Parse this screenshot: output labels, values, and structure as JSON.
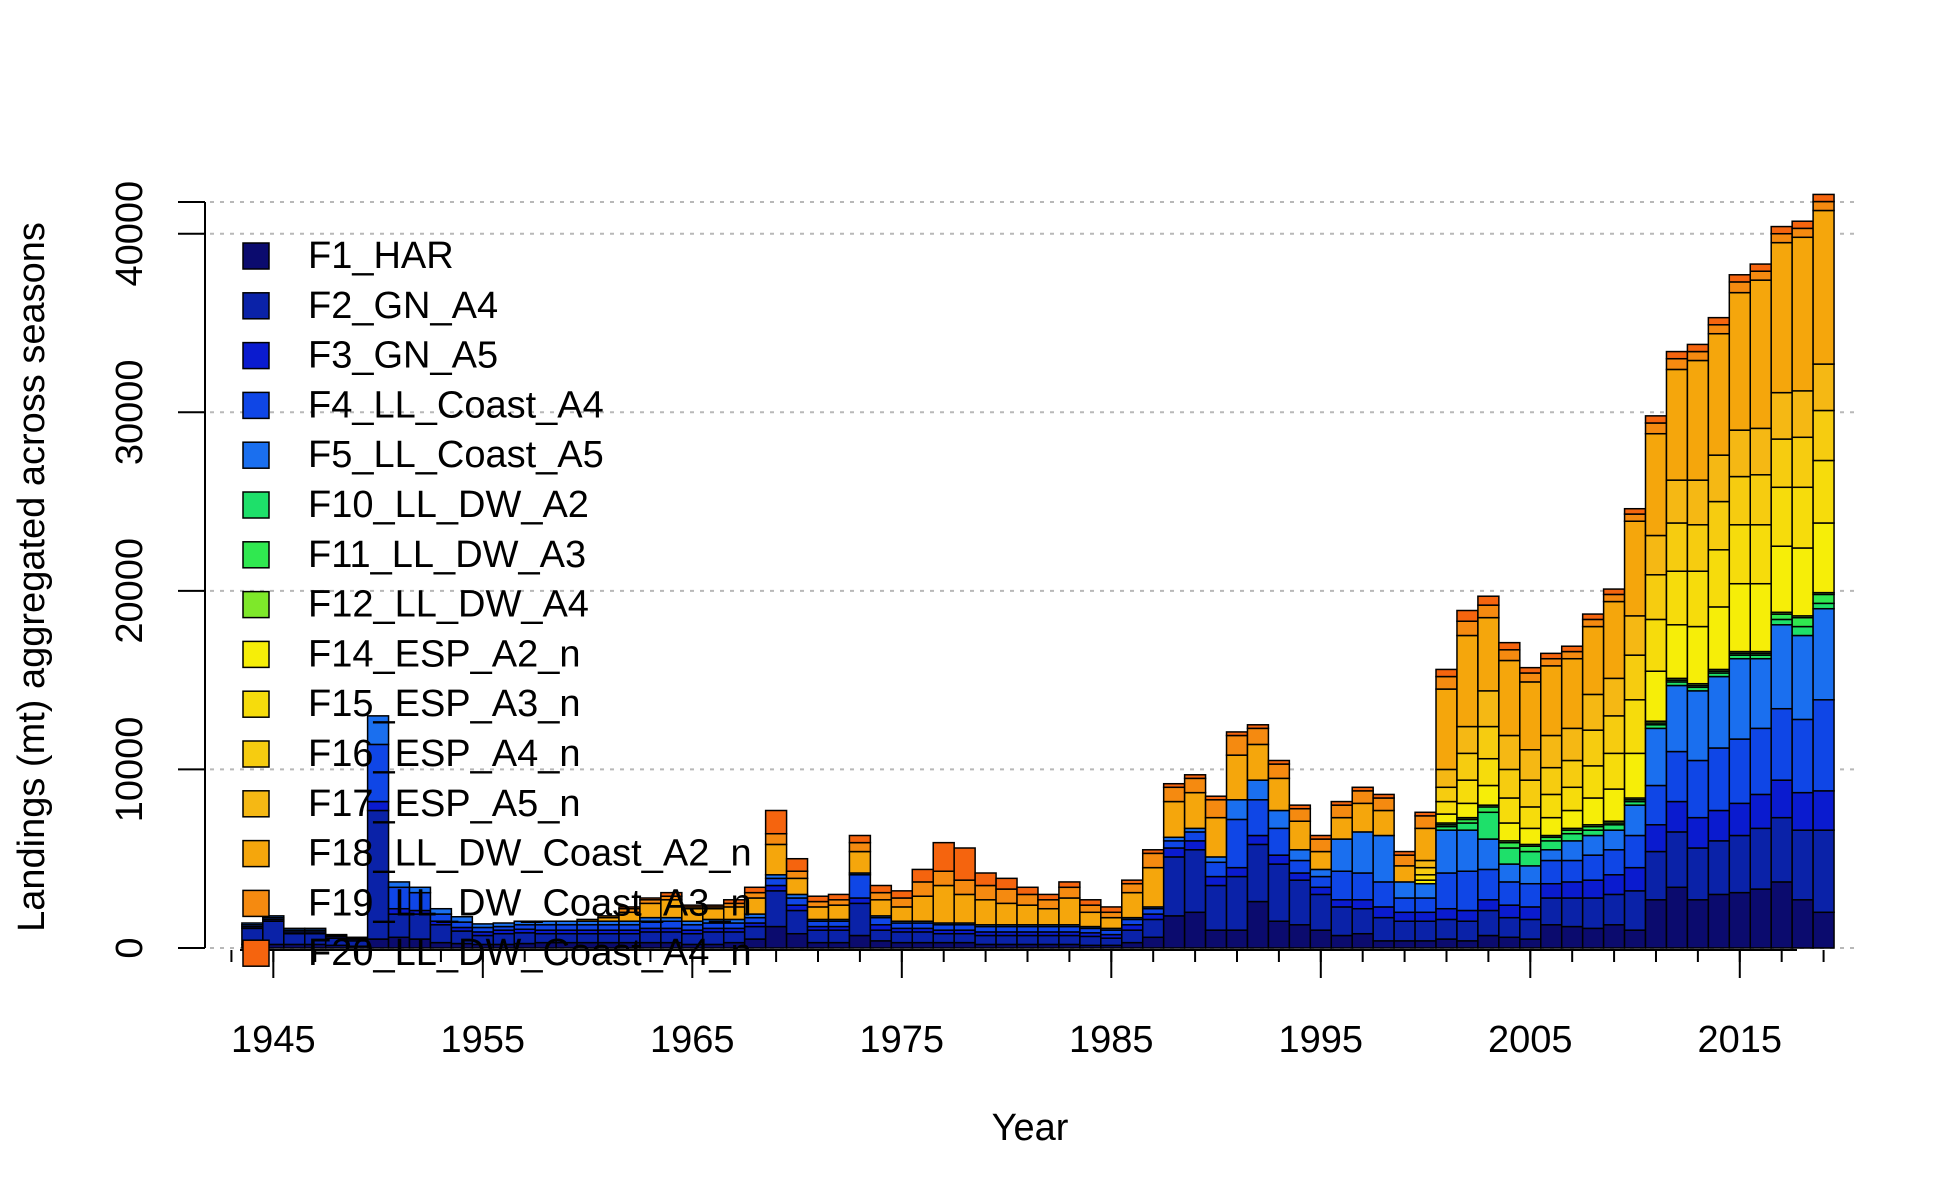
{
  "chart_data": {
    "type": "bar",
    "stacked": true,
    "xlabel": "Year",
    "ylabel": "Landings (mt) aggregated across seasons",
    "xlim": [
      1941.5,
      2020.5
    ],
    "ylim": [
      0,
      42000
    ],
    "x_ticks": [
      1945,
      1955,
      1965,
      1975,
      1985,
      1995,
      2005,
      2015
    ],
    "y_ticks": [
      0,
      10000,
      20000,
      30000,
      40000
    ],
    "y_tick_labels": [
      "0",
      "10000",
      "20000",
      "30000",
      "40000"
    ],
    "grid": "horizontal-dotted",
    "legend_position": "top-left",
    "years": [
      1943,
      1944,
      1945,
      1946,
      1947,
      1948,
      1949,
      1950,
      1951,
      1952,
      1953,
      1954,
      1955,
      1956,
      1957,
      1958,
      1959,
      1960,
      1961,
      1962,
      1963,
      1964,
      1965,
      1966,
      1967,
      1968,
      1969,
      1970,
      1971,
      1972,
      1973,
      1974,
      1975,
      1976,
      1977,
      1978,
      1979,
      1980,
      1981,
      1982,
      1983,
      1984,
      1985,
      1986,
      1987,
      1988,
      1989,
      1990,
      1991,
      1992,
      1993,
      1994,
      1995,
      1996,
      1997,
      1998,
      1999,
      2000,
      2001,
      2002,
      2003,
      2004,
      2005,
      2006,
      2007,
      2008,
      2009,
      2010,
      2011,
      2012,
      2013,
      2014,
      2015,
      2016,
      2017,
      2018,
      2019
    ],
    "categories_short": "one stacked bar per year, 1943-2019",
    "series": [
      {
        "name": "F1_HAR",
        "color": "#0b0b6e",
        "values": [
          0,
          200,
          200,
          200,
          200,
          150,
          100,
          500,
          600,
          500,
          300,
          250,
          200,
          200,
          250,
          300,
          300,
          300,
          300,
          300,
          300,
          300,
          200,
          200,
          300,
          500,
          1200,
          800,
          300,
          300,
          700,
          400,
          300,
          300,
          300,
          300,
          200,
          200,
          200,
          200,
          200,
          150,
          150,
          300,
          600,
          1800,
          2000,
          1000,
          1000,
          2600,
          1500,
          1300,
          1000,
          700,
          800,
          400,
          400,
          400,
          500,
          400,
          700,
          600,
          500,
          1300,
          1200,
          1100,
          1300,
          1000,
          2700,
          3400,
          2700,
          3000,
          3100,
          3300,
          3700,
          2700,
          2000
        ]
      },
      {
        "name": "F2_GN_A4",
        "color": "#0a22a8",
        "values": [
          0,
          900,
          1300,
          600,
          600,
          400,
          300,
          7200,
          1300,
          1400,
          1000,
          700,
          500,
          600,
          600,
          500,
          500,
          500,
          500,
          500,
          600,
          600,
          600,
          700,
          600,
          700,
          2000,
          1300,
          700,
          700,
          1800,
          600,
          600,
          600,
          500,
          500,
          500,
          500,
          500,
          500,
          500,
          500,
          400,
          700,
          1000,
          3300,
          3500,
          2500,
          3000,
          3200,
          3200,
          2500,
          2000,
          1600,
          1400,
          1300,
          1100,
          1100,
          1100,
          1100,
          1400,
          1100,
          1100,
          1500,
          1600,
          1700,
          1700,
          2200,
          2700,
          3100,
          2900,
          3000,
          3200,
          3400,
          3600,
          3900,
          4600
        ]
      },
      {
        "name": "F3_GN_A5",
        "color": "#0a1bcf",
        "values": [
          0,
          100,
          100,
          100,
          100,
          100,
          100,
          500,
          300,
          200,
          200,
          200,
          200,
          200,
          200,
          200,
          200,
          200,
          200,
          200,
          200,
          200,
          200,
          200,
          200,
          200,
          300,
          300,
          200,
          200,
          300,
          300,
          200,
          200,
          200,
          200,
          200,
          200,
          200,
          200,
          200,
          200,
          200,
          300,
          300,
          500,
          500,
          500,
          500,
          500,
          500,
          400,
          400,
          400,
          500,
          600,
          500,
          500,
          600,
          600,
          600,
          700,
          700,
          800,
          900,
          1000,
          1100,
          1300,
          1500,
          1700,
          1700,
          1700,
          1800,
          1900,
          2100,
          2100,
          2200
        ]
      },
      {
        "name": "F4_LL_Coast_A4",
        "color": "#0f46e6",
        "values": [
          0,
          100,
          100,
          100,
          100,
          50,
          50,
          3200,
          1200,
          1000,
          400,
          300,
          250,
          200,
          250,
          300,
          300,
          300,
          300,
          300,
          400,
          400,
          300,
          300,
          300,
          300,
          400,
          400,
          300,
          300,
          1300,
          400,
          300,
          300,
          300,
          300,
          300,
          300,
          300,
          300,
          300,
          250,
          250,
          300,
          300,
          400,
          500,
          800,
          2700,
          2000,
          1500,
          700,
          600,
          1600,
          1500,
          1400,
          800,
          800,
          2000,
          2200,
          1700,
          1300,
          1300,
          1300,
          1200,
          1400,
          1400,
          1800,
          2200,
          2800,
          3200,
          3500,
          3600,
          3700,
          4000,
          4100,
          5100
        ]
      },
      {
        "name": "F5_LL_Coast_A5",
        "color": "#1a6fef",
        "values": [
          0,
          100,
          100,
          100,
          100,
          50,
          50,
          1600,
          300,
          300,
          300,
          300,
          200,
          200,
          200,
          200,
          200,
          200,
          200,
          200,
          200,
          200,
          200,
          200,
          200,
          200,
          200,
          200,
          100,
          100,
          100,
          100,
          100,
          100,
          100,
          100,
          100,
          100,
          100,
          100,
          100,
          100,
          100,
          100,
          100,
          200,
          200,
          300,
          1100,
          1100,
          1000,
          600,
          400,
          1800,
          2300,
          2600,
          900,
          800,
          2400,
          2300,
          1700,
          1000,
          1000,
          600,
          1100,
          1100,
          1100,
          1700,
          3200,
          3700,
          3900,
          4000,
          4500,
          3900,
          4700,
          4700,
          5100
        ]
      },
      {
        "name": "F10_LL_DW_A2",
        "color": "#1ee06a",
        "values": [
          0,
          0,
          0,
          0,
          0,
          0,
          0,
          0,
          0,
          0,
          0,
          0,
          0,
          0,
          0,
          0,
          0,
          0,
          0,
          0,
          0,
          0,
          0,
          0,
          0,
          0,
          0,
          0,
          0,
          0,
          0,
          0,
          0,
          0,
          0,
          0,
          0,
          0,
          0,
          0,
          0,
          0,
          0,
          0,
          0,
          0,
          0,
          0,
          0,
          0,
          0,
          0,
          0,
          0,
          0,
          0,
          0,
          0,
          200,
          400,
          1500,
          900,
          800,
          500,
          400,
          300,
          300,
          200,
          200,
          200,
          200,
          200,
          200,
          200,
          300,
          500,
          300
        ]
      },
      {
        "name": "F11_LL_DW_A3",
        "color": "#30e850",
        "values": [
          0,
          0,
          0,
          0,
          0,
          0,
          0,
          0,
          0,
          0,
          0,
          0,
          0,
          0,
          0,
          0,
          0,
          0,
          0,
          0,
          0,
          0,
          0,
          0,
          0,
          0,
          0,
          0,
          0,
          0,
          0,
          0,
          0,
          0,
          0,
          0,
          0,
          0,
          0,
          0,
          0,
          0,
          0,
          0,
          0,
          0,
          0,
          0,
          0,
          0,
          0,
          0,
          0,
          0,
          0,
          0,
          0,
          0,
          100,
          200,
          300,
          300,
          300,
          200,
          200,
          200,
          100,
          100,
          100,
          100,
          100,
          100,
          100,
          100,
          300,
          500,
          500
        ]
      },
      {
        "name": "F12_LL_DW_A4",
        "color": "#7ee82a",
        "values": [
          0,
          0,
          0,
          0,
          0,
          0,
          0,
          0,
          0,
          0,
          0,
          0,
          0,
          0,
          0,
          0,
          0,
          0,
          0,
          0,
          0,
          0,
          0,
          0,
          0,
          0,
          0,
          0,
          0,
          0,
          0,
          0,
          0,
          0,
          0,
          0,
          0,
          0,
          0,
          0,
          0,
          0,
          0,
          0,
          0,
          0,
          0,
          0,
          0,
          0,
          0,
          0,
          0,
          0,
          0,
          0,
          0,
          0,
          100,
          100,
          100,
          100,
          100,
          100,
          100,
          100,
          100,
          100,
          100,
          100,
          100,
          100,
          100,
          100,
          100,
          100,
          100
        ]
      },
      {
        "name": "F14_ESP_A2_n",
        "color": "#f6ee08",
        "values": [
          0,
          0,
          0,
          0,
          0,
          0,
          0,
          0,
          0,
          0,
          0,
          0,
          0,
          0,
          0,
          0,
          0,
          0,
          0,
          0,
          0,
          0,
          0,
          0,
          0,
          0,
          0,
          0,
          0,
          0,
          0,
          0,
          0,
          0,
          0,
          0,
          0,
          0,
          0,
          0,
          0,
          0,
          0,
          0,
          0,
          0,
          0,
          0,
          0,
          0,
          0,
          0,
          0,
          0,
          0,
          0,
          0,
          200,
          500,
          800,
          1100,
          1000,
          900,
          1000,
          1000,
          1500,
          1800,
          2500,
          2800,
          3000,
          3200,
          3500,
          3800,
          3800,
          3700,
          3800,
          3900
        ]
      },
      {
        "name": "F15_ESP_A3_n",
        "color": "#f6dc0c",
        "values": [
          0,
          0,
          0,
          0,
          0,
          0,
          0,
          0,
          0,
          0,
          0,
          0,
          0,
          0,
          0,
          0,
          0,
          0,
          0,
          0,
          0,
          0,
          0,
          0,
          0,
          0,
          0,
          0,
          0,
          0,
          0,
          0,
          0,
          0,
          0,
          0,
          0,
          0,
          0,
          0,
          0,
          0,
          0,
          0,
          0,
          0,
          0,
          0,
          0,
          0,
          0,
          0,
          0,
          0,
          0,
          0,
          0,
          300,
          700,
          1300,
          1500,
          1400,
          1200,
          1300,
          1300,
          1800,
          2000,
          3000,
          2900,
          3000,
          3100,
          3200,
          3300,
          3300,
          3300,
          3400,
          3500
        ]
      },
      {
        "name": "F16_ESP_A4_n",
        "color": "#f6cc10",
        "values": [
          0,
          0,
          0,
          0,
          0,
          0,
          0,
          0,
          0,
          0,
          0,
          0,
          0,
          0,
          0,
          0,
          0,
          0,
          0,
          0,
          0,
          0,
          0,
          0,
          0,
          0,
          0,
          0,
          0,
          0,
          0,
          0,
          0,
          0,
          0,
          0,
          0,
          0,
          0,
          0,
          0,
          0,
          0,
          0,
          0,
          0,
          0,
          0,
          0,
          0,
          0,
          0,
          0,
          0,
          0,
          0,
          0,
          400,
          800,
          1500,
          1800,
          1600,
          1500,
          1500,
          1500,
          2000,
          2100,
          2500,
          2500,
          2700,
          2600,
          2700,
          2700,
          2800,
          2700,
          2800,
          2800
        ]
      },
      {
        "name": "F17_ESP_A5_n",
        "color": "#f5b814",
        "values": [
          0,
          0,
          0,
          0,
          0,
          0,
          0,
          0,
          0,
          0,
          0,
          0,
          0,
          0,
          0,
          0,
          0,
          0,
          0,
          0,
          0,
          0,
          0,
          0,
          0,
          0,
          0,
          0,
          0,
          0,
          0,
          0,
          0,
          0,
          0,
          0,
          0,
          0,
          0,
          0,
          0,
          0,
          0,
          0,
          0,
          0,
          0,
          0,
          0,
          0,
          0,
          0,
          0,
          0,
          0,
          0,
          0,
          400,
          1000,
          1500,
          2000,
          1900,
          1700,
          1800,
          1800,
          2000,
          2100,
          2200,
          2200,
          2400,
          2500,
          2600,
          2600,
          2600,
          2600,
          2600,
          2600
        ]
      },
      {
        "name": "F18_LL_DW_Coast_A2_n",
        "color": "#f5a60c",
        "values": [
          0,
          0,
          0,
          0,
          0,
          0,
          0,
          0,
          0,
          0,
          0,
          0,
          0,
          0,
          0,
          0,
          0,
          100,
          200,
          500,
          800,
          1000,
          700,
          600,
          700,
          900,
          1700,
          900,
          700,
          800,
          1200,
          900,
          800,
          1400,
          2100,
          1600,
          1400,
          1200,
          1100,
          900,
          1500,
          800,
          600,
          1400,
          2200,
          2000,
          2000,
          2200,
          2500,
          2000,
          1800,
          1600,
          1000,
          1200,
          1600,
          1400,
          900,
          1800,
          4500,
          5100,
          4100,
          4200,
          3800,
          3900,
          3900,
          3800,
          4300,
          5300,
          5700,
          6200,
          6700,
          6800,
          7700,
          8300,
          8400,
          8600,
          8600
        ]
      },
      {
        "name": "F19_LL_DW_Coast_A3_n",
        "color": "#f58a10",
        "values": [
          0,
          0,
          0,
          0,
          0,
          0,
          0,
          0,
          0,
          0,
          0,
          0,
          0,
          0,
          0,
          0,
          0,
          0,
          100,
          200,
          200,
          200,
          100,
          100,
          200,
          300,
          600,
          400,
          300,
          300,
          500,
          400,
          500,
          800,
          800,
          800,
          800,
          800,
          600,
          500,
          600,
          400,
          300,
          500,
          800,
          800,
          800,
          1000,
          1100,
          900,
          800,
          700,
          700,
          700,
          700,
          700,
          600,
          700,
          700,
          800,
          700,
          600,
          500,
          400,
          400,
          400,
          400,
          400,
          600,
          600,
          500,
          500,
          600,
          500,
          500,
          500,
          500
        ]
      },
      {
        "name": "F20_LL_DW_Coast_A4_n",
        "color": "#f5640e",
        "values": [
          0,
          0,
          0,
          0,
          0,
          0,
          0,
          0,
          0,
          0,
          0,
          0,
          0,
          0,
          0,
          0,
          0,
          0,
          0,
          100,
          100,
          200,
          100,
          100,
          200,
          300,
          1300,
          700,
          300,
          300,
          400,
          400,
          400,
          700,
          1600,
          1800,
          700,
          600,
          400,
          300,
          300,
          300,
          300,
          200,
          200,
          200,
          200,
          200,
          200,
          200,
          200,
          200,
          200,
          200,
          200,
          200,
          200,
          200,
          400,
          600,
          500,
          400,
          300,
          300,
          300,
          300,
          300,
          300,
          400,
          400,
          400,
          400,
          400,
          400,
          400,
          400,
          400
        ]
      }
    ]
  }
}
